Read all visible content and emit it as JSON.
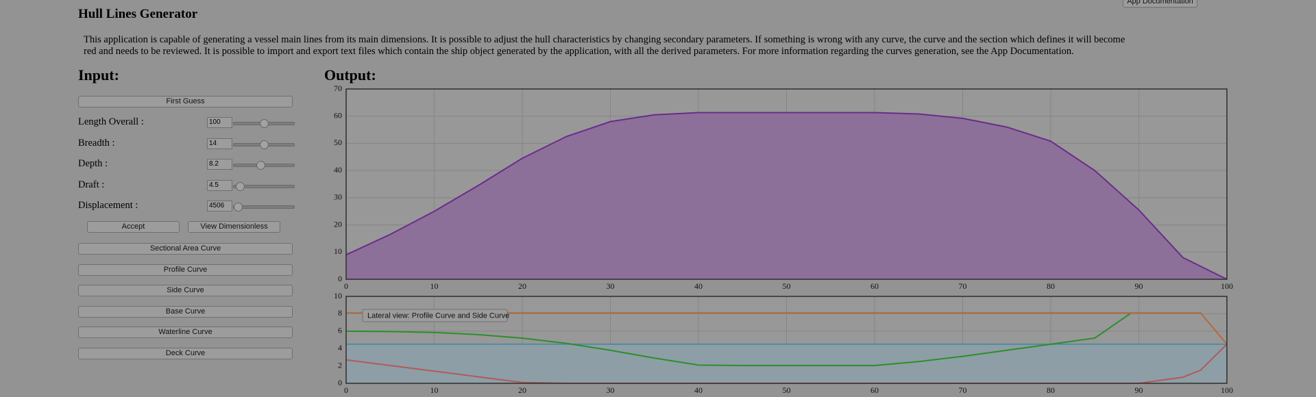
{
  "header": {
    "title": "Hull Lines Generator",
    "doc_button": "App Documentation"
  },
  "description": [
    "This application is capable of generating a vessel main lines from its main dimensions. It is possible to adjust the hull characteristics by changing secondary parameters. If something is wrong with any curve, the curve and the section which defines it will become",
    "red and needs to be reviewed. It is possible to import and export text files which contain the ship object generated by the application, with all the derived parameters. For more information regarding the curves generation, see the App Documentation."
  ],
  "input": {
    "heading": "Input:",
    "first_guess": "First Guess",
    "fields": [
      {
        "label": "Length Overall :",
        "value": 100
      },
      {
        "label": "Breadth :",
        "value": 14
      },
      {
        "label": "Depth :",
        "value": 8.2
      },
      {
        "label": "Draft :",
        "value": 4.5
      },
      {
        "label": "Displacement :",
        "value": 4506
      }
    ],
    "accept": "Accept",
    "view_dimensionless": "View Dimensionless",
    "curve_buttons": [
      "Sectional Area Curve",
      "Profile Curve",
      "Side Curve",
      "Base Curve",
      "Waterline Curve",
      "Deck Curve"
    ]
  },
  "output": {
    "heading": "Output:"
  },
  "chart_data": [
    {
      "type": "area",
      "x": [
        0,
        5,
        10,
        15,
        20,
        25,
        30,
        35,
        40,
        45,
        50,
        55,
        60,
        65,
        70,
        75,
        80,
        85,
        90,
        95,
        100
      ],
      "values": [
        9,
        16.5,
        25,
        34.5,
        44.5,
        52.5,
        58,
        60.5,
        61.3,
        61.3,
        61.3,
        61.3,
        61.3,
        60.8,
        59.2,
        56,
        50.8,
        40,
        25.5,
        8,
        0
      ],
      "color": "#6b2b8c",
      "fill_color": "#8c7099",
      "xlim": [
        0,
        100
      ],
      "xticks": [
        0,
        10,
        20,
        30,
        40,
        50,
        60,
        70,
        80,
        90,
        100
      ],
      "ylim": [
        0,
        70
      ],
      "yticks": [
        0,
        10,
        20,
        30,
        40,
        50,
        60,
        70
      ],
      "grid": true
    },
    {
      "type": "line",
      "annotation": "Lateral view: Profile Curve and Side Curve",
      "x": [
        0,
        5,
        10,
        15,
        20,
        25,
        30,
        35,
        40,
        45,
        50,
        55,
        60,
        65,
        70,
        75,
        80,
        85,
        89,
        90,
        95,
        97,
        100
      ],
      "series": [
        {
          "color": "#4f8c9e",
          "fill": true,
          "fill_color": "#8e9ea6",
          "values": [
            4.5,
            4.5,
            4.5,
            4.5,
            4.5,
            4.5,
            4.5,
            4.5,
            4.5,
            4.5,
            4.5,
            4.5,
            4.5,
            4.5,
            4.5,
            4.5,
            4.5,
            4.5,
            4.5,
            4.5,
            4.5,
            4.5,
            4.5
          ]
        },
        {
          "color": "#b46a3c",
          "fill": false,
          "values": [
            8.1,
            8.1,
            8.1,
            8.1,
            8.1,
            8.1,
            8.1,
            8.1,
            8.1,
            8.1,
            8.1,
            8.1,
            8.1,
            8.1,
            8.1,
            8.1,
            8.1,
            8.1,
            8.1,
            8.1,
            8.1,
            8.1,
            4.5
          ]
        },
        {
          "color": "#b05a5a",
          "fill": false,
          "values": [
            2.7,
            2.05,
            1.4,
            0.75,
            0.1,
            0,
            0,
            0,
            0,
            0,
            0,
            0,
            0,
            0,
            0,
            0,
            0,
            0,
            0,
            0,
            0.7,
            1.5,
            4.5
          ]
        },
        {
          "color": "#2a8f2a",
          "fill": false,
          "values": [
            6,
            5.95,
            5.85,
            5.6,
            5.2,
            4.6,
            3.8,
            2.9,
            2.1,
            2.05,
            2.05,
            2.05,
            2.05,
            2.5,
            3.1,
            3.8,
            4.5,
            5.2,
            8,
            null,
            null,
            null,
            null
          ]
        }
      ],
      "xlim": [
        0,
        100
      ],
      "xticks": [
        0,
        10,
        20,
        30,
        40,
        50,
        60,
        70,
        80,
        90,
        100
      ],
      "ylim": [
        0,
        10
      ],
      "yticks": [
        0,
        2,
        4,
        6,
        8,
        10
      ],
      "grid": true
    }
  ]
}
